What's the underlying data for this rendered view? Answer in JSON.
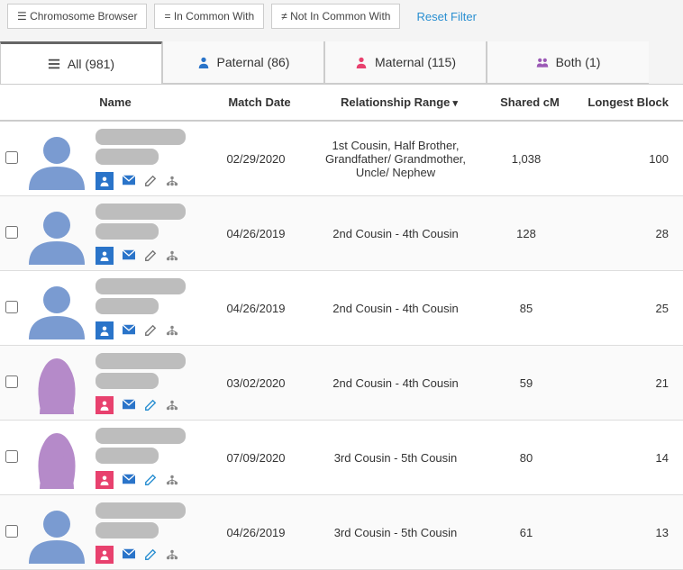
{
  "toolbar": {
    "chrom_browser": "Chromosome Browser",
    "in_common": "In Common With",
    "not_in_common": "Not In Common With",
    "reset": "Reset Filter"
  },
  "tabs": {
    "all": {
      "label": "All",
      "count": "(981)"
    },
    "paternal": {
      "label": "Paternal",
      "count": "(86)",
      "icon_color": "#2a74c9"
    },
    "maternal": {
      "label": "Maternal",
      "count": "(115)",
      "icon_color": "#e8416e"
    },
    "both": {
      "label": "Both",
      "count": "(1)"
    }
  },
  "table": {
    "headers": {
      "name": "Name",
      "match_date": "Match Date",
      "relationship": "Relationship Range",
      "shared_cm": "Shared cM",
      "longest_block": "Longest Block"
    }
  },
  "icons": {
    "envelope_color": "#2a74c9",
    "pencil_color_male": "#777",
    "pencil_color_female": "#2a8fd1",
    "tree_color": "#888"
  },
  "colors": {
    "male_avatar": "#7a9bd1",
    "female_avatar": "#b58ac9",
    "male_badge": "#2a74c9",
    "female_badge": "#e8416e"
  },
  "rows": [
    {
      "gender": "male",
      "match_date": "02/29/2020",
      "relationship": "1st Cousin, Half Brother, Grandfather/ Grandmother, Uncle/ Nephew",
      "shared_cm": "1,038",
      "longest_block": "100"
    },
    {
      "gender": "male",
      "match_date": "04/26/2019",
      "relationship": "2nd Cousin - 4th Cousin",
      "shared_cm": "128",
      "longest_block": "28"
    },
    {
      "gender": "male",
      "match_date": "04/26/2019",
      "relationship": "2nd Cousin - 4th Cousin",
      "shared_cm": "85",
      "longest_block": "25"
    },
    {
      "gender": "female",
      "match_date": "03/02/2020",
      "relationship": "2nd Cousin - 4th Cousin",
      "shared_cm": "59",
      "longest_block": "21"
    },
    {
      "gender": "female",
      "match_date": "07/09/2020",
      "relationship": "3rd Cousin - 5th Cousin",
      "shared_cm": "80",
      "longest_block": "14"
    },
    {
      "gender": "female-badge-male-avatar",
      "match_date": "04/26/2019",
      "relationship": "3rd Cousin - 5th Cousin",
      "shared_cm": "61",
      "longest_block": "13"
    }
  ]
}
